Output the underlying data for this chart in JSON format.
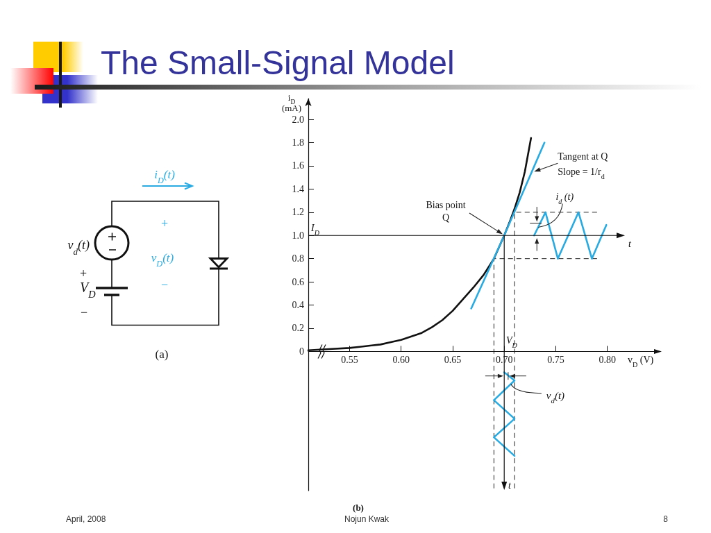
{
  "chart_data": {
    "type": "line",
    "title": "The Small-Signal Model",
    "xlabel": "v$_{D}$ (V)",
    "ylabel": "i$_{D}$\n(mA)",
    "xlim": [
      0.51,
      0.85
    ],
    "xticks": [
      0.55,
      {
        "value": 0.6,
        "label": "0.60"
      },
      0.65,
      {
        "value": 0.7,
        "label": "0.70"
      },
      0.75,
      {
        "value": 0.8,
        "label": "0.80"
      }
    ],
    "ylim": [
      -1.2,
      2.18
    ],
    "yticks": [
      0,
      0.2,
      0.4,
      0.6,
      0.8,
      {
        "value": 1,
        "label": "1.0"
      },
      1.2,
      1.4,
      1.6,
      1.8,
      {
        "value": 2,
        "label": "2.0"
      }
    ],
    "series": [
      {
        "color": "#111111",
        "x": [
          0.51,
          0.53,
          0.55,
          0.56,
          0.57,
          0.58,
          0.59,
          0.6,
          0.61,
          0.62,
          0.63,
          0.64,
          0.65,
          0.66,
          0.67,
          0.68,
          0.69,
          0.7,
          0.705,
          0.71,
          0.715,
          0.72,
          0.726
        ],
        "values": [
          0.01,
          0.02,
          0.03,
          0.04,
          0.05,
          0.06,
          0.08,
          0.1,
          0.13,
          0.16,
          0.21,
          0.27,
          0.35,
          0.45,
          0.55,
          0.66,
          0.8,
          1.0,
          1.11,
          1.23,
          1.37,
          1.55,
          1.84
        ]
      },
      {
        "color": "#29abe2",
        "x": [
          0.668,
          0.7,
          0.739
        ],
        "values": [
          0.37,
          1.0,
          1.8
        ]
      },
      {
        "color": "#29abe2",
        "x": [
          0.729,
          0.74,
          0.752,
          0.772,
          0.785,
          0.799
        ],
        "values": [
          1.0,
          1.2,
          0.8,
          1.2,
          0.8,
          1.09
        ]
      },
      {
        "color": "#29abe2",
        "x": [
          0.7,
          0.71,
          0.69,
          0.71,
          0.69,
          0.71
        ],
        "values": [
          -0.18,
          -0.25,
          -0.42,
          -0.58,
          -0.74,
          -0.9
        ]
      },
      {
        "color": "#222222",
        "line_style": "dashed",
        "x": [
          0.79,
          0.71,
          0.71
        ],
        "values": [
          1.2,
          1.2,
          -1.18
        ]
      },
      {
        "color": "#222222",
        "line_style": "dashed",
        "x": [
          0.79,
          0.69,
          0.69
        ],
        "values": [
          0.8,
          0.8,
          -1.18
        ]
      }
    ],
    "annotations": [
      {
        "text": "Tangent at Q\nSlope = 1/r$_{d}$",
        "x": 0.727,
        "y": 1.55
      },
      "Bias point\nQ",
      {
        "text": "i$_{d}$ (t)",
        "x": 0.733,
        "y": 1.07
      },
      {
        "text": "v$_{d}$(t)",
        "x": 0.7065,
        "y": -0.28
      },
      "I$_{D}$",
      "V$_{D}$",
      "(b)",
      "(a)",
      "April, 2008",
      "Nojun Kwak",
      "8",
      "i$_{D}$(t)",
      "+",
      "v$_{D}$(t)",
      "−",
      "v$_{d}$(t)",
      "+",
      "V$_{D}$",
      "−",
      "t",
      "t"
    ]
  }
}
